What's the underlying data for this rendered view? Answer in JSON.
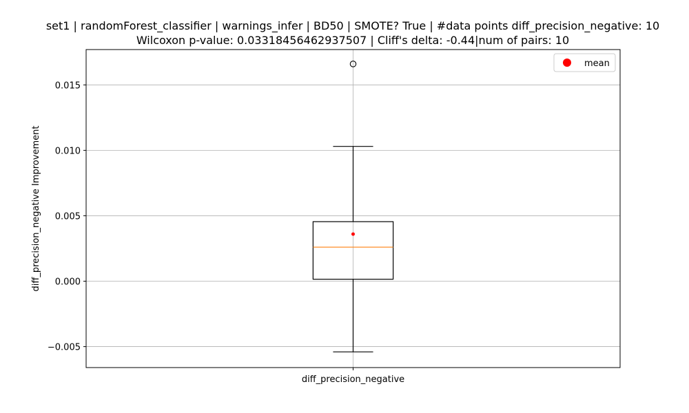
{
  "chart_data": {
    "type": "box",
    "title_lines": [
      "set1 | randomForest_classifier | warnings_infer | BD50 | SMOTE? True | #data points diff_precision_negative: 10",
      "Wilcoxon p-value: 0.03318456462937507 | Cliff's delta: -0.44|num of pairs: 10"
    ],
    "xlabel": "",
    "ylabel": "diff_precision_negative Improvement",
    "categories": [
      "diff_precision_negative"
    ],
    "ylim": [
      -0.0066,
      0.0177
    ],
    "yticks": [
      -0.005,
      0.0,
      0.005,
      0.01,
      0.015
    ],
    "ytick_labels": [
      "−0.005",
      "0.000",
      "0.005",
      "0.010",
      "0.015"
    ],
    "grid": true,
    "legend": {
      "position": "top-right",
      "entries": [
        {
          "label": "mean",
          "color": "#ff0000",
          "marker": "circle"
        }
      ]
    },
    "boxes": [
      {
        "category": "diff_precision_negative",
        "whisker_low": -0.0054,
        "q1": 0.00015,
        "median": 0.0026,
        "q3": 0.00455,
        "whisker_high": 0.0103,
        "mean": 0.0036,
        "outliers": [
          0.0166
        ]
      }
    ],
    "colors": {
      "median": "#ff7f0e",
      "mean": "#ff0000",
      "box": "#000000",
      "grid": "#b0b0b0"
    }
  }
}
